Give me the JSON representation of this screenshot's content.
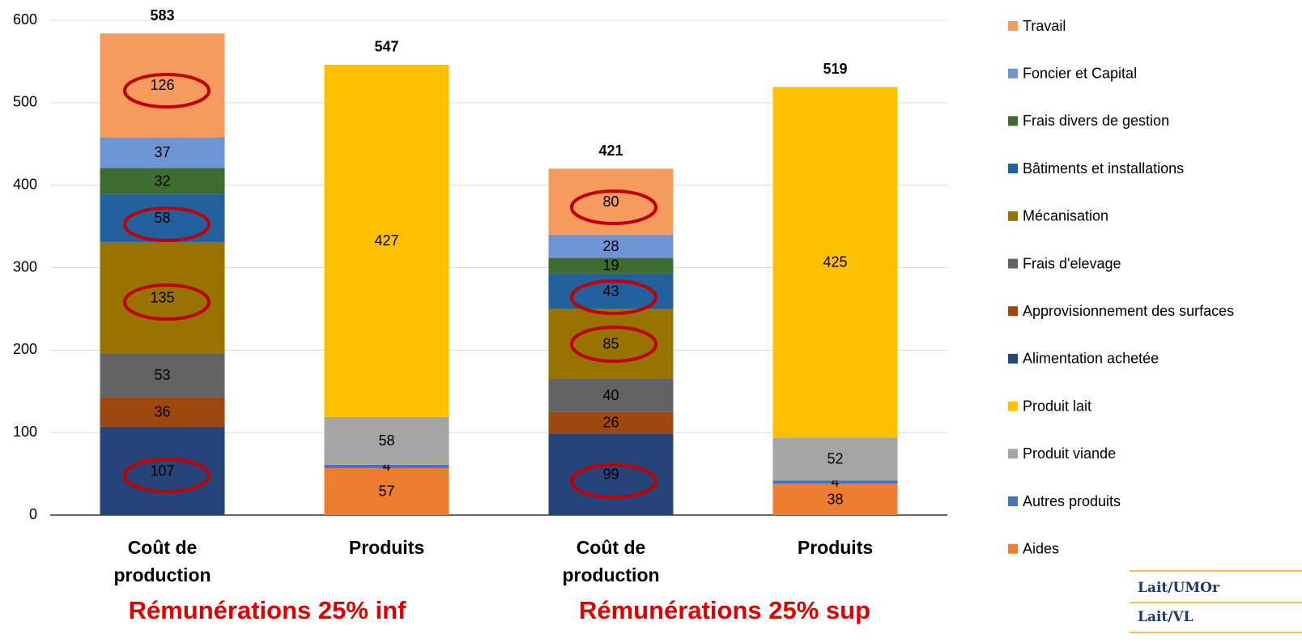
{
  "chart_data": {
    "type": "stacked_bar",
    "categories": [
      "Coût de production",
      "Produits",
      "Coût de production",
      "Produits"
    ],
    "series": [
      {
        "name": "Travail",
        "color": "#F59B5E",
        "values": [
          126,
          null,
          80,
          null
        ]
      },
      {
        "name": "Foncier et Capital",
        "color": "#6D95D5",
        "values": [
          37,
          null,
          28,
          null
        ]
      },
      {
        "name": "Frais divers de gestion",
        "color": "#3E6B2E",
        "values": [
          32,
          null,
          19,
          null
        ]
      },
      {
        "name": "Bâtiments et installations",
        "color": "#22609E",
        "values": [
          58,
          null,
          43,
          null
        ]
      },
      {
        "name": "Mécanisation",
        "color": "#997300",
        "values": [
          135,
          null,
          85,
          null
        ]
      },
      {
        "name": "Frais d'elevage",
        "color": "#636363",
        "values": [
          53,
          null,
          40,
          null
        ]
      },
      {
        "name": "Approvisionnement des surfaces",
        "color": "#9E480E",
        "values": [
          36,
          null,
          26,
          null
        ]
      },
      {
        "name": "Alimentation achetée",
        "color": "#264478",
        "values": [
          107,
          null,
          99,
          null
        ]
      },
      {
        "name": "Produit lait",
        "color": "#FFC000",
        "values": [
          null,
          427,
          null,
          425
        ]
      },
      {
        "name": "Produit viande",
        "color": "#A5A5A5",
        "values": [
          null,
          58,
          null,
          52
        ]
      },
      {
        "name": "Autres produits",
        "color": "#4472C4",
        "values": [
          null,
          4,
          null,
          4
        ]
      },
      {
        "name": "Aides",
        "color": "#ED7D31",
        "values": [
          null,
          57,
          null,
          38
        ]
      }
    ],
    "totals": [
      583,
      547,
      421,
      519
    ],
    "ylim": [
      0,
      600
    ],
    "yticks": [
      0,
      100,
      200,
      300,
      400,
      500,
      600
    ],
    "grid": true,
    "legend": "right",
    "annotations": [
      "Rémunérations  25% inf",
      "Rémunérations  25% sup"
    ]
  },
  "side_table": [
    "Lait/UMOr",
    "Lait/VL"
  ]
}
